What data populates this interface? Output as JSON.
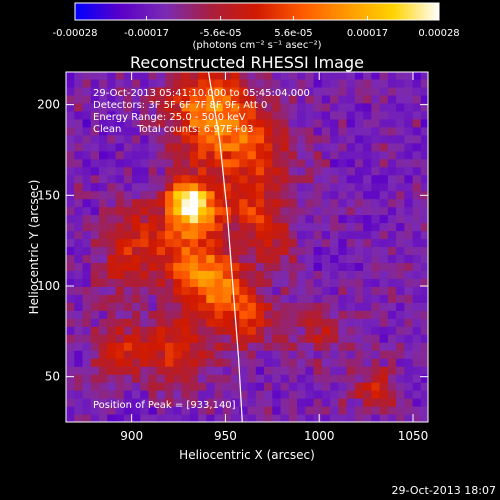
{
  "chart_data": {
    "type": "heatmap",
    "title": "Reconstructed RHESSI Image",
    "xlabel": "Heliocentric X (arcsec)",
    "ylabel": "Heliocentric Y (arcsec)",
    "xlim": [
      865,
      1058
    ],
    "ylim": [
      25,
      218
    ],
    "x_ticks": [
      "900",
      "950",
      "1000",
      "1050"
    ],
    "y_ticks": [
      "50",
      "100",
      "150",
      "200"
    ],
    "x_tick_values": [
      900,
      950,
      1000,
      1050
    ],
    "y_tick_values": [
      50,
      100,
      150,
      200
    ],
    "colorbar": {
      "min": -0.00028,
      "max": 0.00028,
      "ticks": [
        "-0.00028",
        "-0.00017",
        "-5.6e-05",
        "5.6e-05",
        "0.00017",
        "0.00028"
      ],
      "tick_values": [
        -0.00028,
        -0.00017,
        -5.6e-05,
        5.6e-05,
        0.00017,
        0.00028
      ],
      "unit_label": "(photons cm⁻² s⁻¹ asec⁻²)",
      "colors": [
        "#0000ff",
        "#5a00c8",
        "#7a2ab4",
        "#aa1e3c",
        "#d11a00",
        "#ff5a00",
        "#ff9a00",
        "#ffd300",
        "#ffffff"
      ]
    },
    "annotations": [
      "29-Oct-2013 05:41:10.000 to 05:45:04.000",
      "Detectors: 3F 5F 6F 7F 8F 9F, Att 0",
      "Energy Range: 25.0 - 50.0 keV",
      "Clean     Total counts: 6.97E+03"
    ],
    "peak_label": "Position of Peak = [933,140]",
    "peak_position": [
      933,
      140
    ],
    "limb_curve": {
      "color": "#ffffff",
      "points": [
        [
          941,
          218
        ],
        [
          947,
          180
        ],
        [
          951,
          140
        ],
        [
          954,
          100
        ],
        [
          957,
          60
        ],
        [
          959,
          25
        ]
      ]
    },
    "blobs": [
      {
        "x": 933,
        "y": 140,
        "sigma": 9,
        "amp": 0.00028
      },
      {
        "x": 930,
        "y": 150,
        "sigma": 8,
        "amp": 0.00025
      },
      {
        "x": 935,
        "y": 110,
        "sigma": 12,
        "amp": 0.00022
      },
      {
        "x": 940,
        "y": 200,
        "sigma": 16,
        "amp": 0.00022
      },
      {
        "x": 960,
        "y": 175,
        "sigma": 18,
        "amp": 0.00018
      },
      {
        "x": 965,
        "y": 140,
        "sigma": 12,
        "amp": 0.00014
      },
      {
        "x": 950,
        "y": 95,
        "sigma": 12,
        "amp": 0.00018
      },
      {
        "x": 905,
        "y": 125,
        "sigma": 14,
        "amp": 0.00015
      },
      {
        "x": 925,
        "y": 65,
        "sigma": 14,
        "amp": 0.00015
      },
      {
        "x": 895,
        "y": 65,
        "sigma": 11,
        "amp": 0.00012
      },
      {
        "x": 965,
        "y": 80,
        "sigma": 10,
        "amp": 0.00012
      },
      {
        "x": 1000,
        "y": 75,
        "sigma": 10,
        "amp": 0.0001
      },
      {
        "x": 1030,
        "y": 45,
        "sigma": 10,
        "amp": 0.00012
      },
      {
        "x": 975,
        "y": 120,
        "sigma": 9,
        "amp": 9e-05
      },
      {
        "x": 890,
        "y": 105,
        "sigma": 8,
        "amp": 8e-05
      }
    ],
    "background_level": -0.00015
  },
  "footer": {
    "timestamp": "29-Oct-2013 18:07"
  }
}
